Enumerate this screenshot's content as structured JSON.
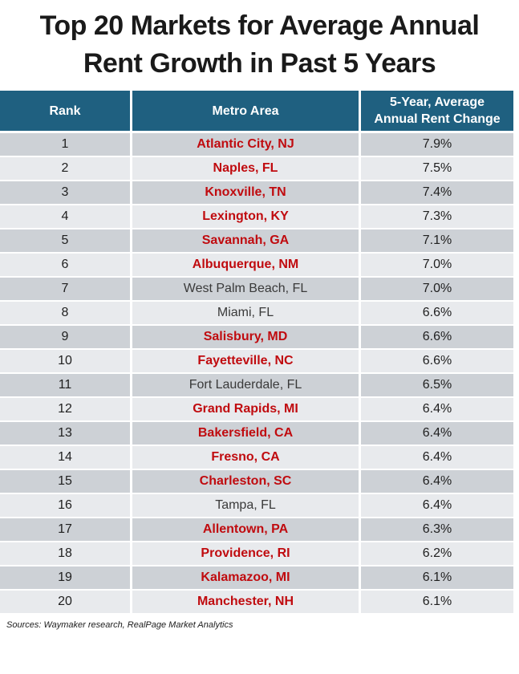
{
  "title": {
    "line1": "Top 20 Markets for Average Annual",
    "line2": "Rent Growth in Past 5 Years"
  },
  "table": {
    "headers": {
      "rank": "Rank",
      "metro": "Metro Area",
      "change_line1": "5-Year, Average",
      "change_line2": "Annual Rent Change"
    }
  },
  "source": "Sources: Waymaker research, RealPage Market Analytics",
  "colors": {
    "header_bg": "#1F6080",
    "row_dark": "#CDD1D6",
    "row_light": "#E8EAED",
    "highlight_text": "#C00B0F",
    "header_text": "#FFFFFF",
    "body_text": "#1F1F1F",
    "title_text": "#1A1A1A"
  },
  "chart_data": {
    "type": "table",
    "title": "Top 20 Markets for Average Annual Rent Growth in Past 5 Years",
    "columns": [
      "Rank",
      "Metro Area",
      "5-Year, Average Annual Rent Change"
    ],
    "unit": "%",
    "rows": [
      [
        1,
        "Atlantic City, NJ",
        7.9
      ],
      [
        2,
        "Naples, FL",
        7.5
      ],
      [
        3,
        "Knoxville, TN",
        7.4
      ],
      [
        4,
        "Lexington, KY",
        7.3
      ],
      [
        5,
        "Savannah, GA",
        7.1
      ],
      [
        6,
        "Albuquerque, NM",
        7.0
      ],
      [
        7,
        "West Palm Beach, FL",
        7.0
      ],
      [
        8,
        "Miami, FL",
        6.6
      ],
      [
        9,
        "Salisbury, MD",
        6.6
      ],
      [
        10,
        "Fayetteville, NC",
        6.6
      ],
      [
        11,
        "Fort Lauderdale, FL",
        6.5
      ],
      [
        12,
        "Grand Rapids, MI",
        6.4
      ],
      [
        13,
        "Bakersfield, CA",
        6.4
      ],
      [
        14,
        "Fresno, CA",
        6.4
      ],
      [
        15,
        "Charleston, SC",
        6.4
      ],
      [
        16,
        "Tampa, FL",
        6.4
      ],
      [
        17,
        "Allentown, PA",
        6.3
      ],
      [
        18,
        "Providence, RI",
        6.2
      ],
      [
        19,
        "Kalamazoo, MI",
        6.1
      ],
      [
        20,
        "Manchester, NH",
        6.1
      ]
    ],
    "highlighted_rows_red": [
      1,
      2,
      3,
      4,
      5,
      6,
      9,
      10,
      12,
      13,
      14,
      15,
      17,
      18,
      19,
      20
    ],
    "source": "Sources: Waymaker research, RealPage Market Analytics"
  }
}
